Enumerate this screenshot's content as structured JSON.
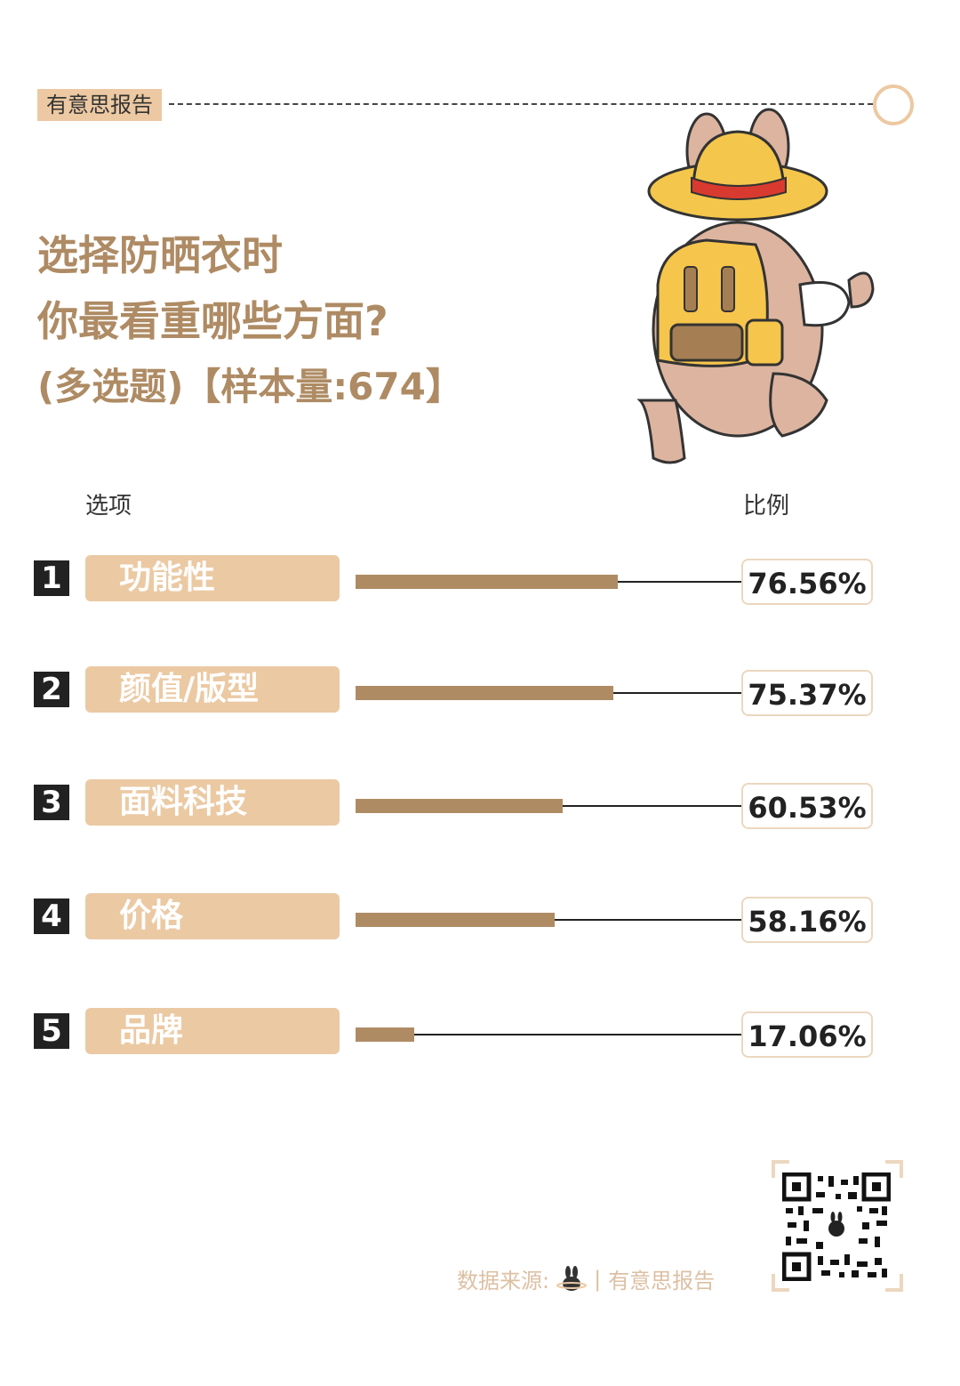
{
  "header": {
    "brand_tag": "有意思报告"
  },
  "title": {
    "line1": "选择防晒衣时",
    "line2": "你最看重哪些方面?",
    "line3": "(多选题)【样本量:674】"
  },
  "table": {
    "col_option": "选项",
    "col_ratio": "比例"
  },
  "chart_data": {
    "type": "bar",
    "categories": [
      "功能性",
      "颜值/版型",
      "面料科技",
      "价格",
      "品牌"
    ],
    "ranks": [
      "1",
      "2",
      "3",
      "4",
      "5"
    ],
    "values": [
      76.56,
      75.37,
      60.53,
      58.16,
      17.06
    ],
    "value_labels": [
      "76.56%",
      "75.37%",
      "60.53%",
      "58.16%",
      "17.06%"
    ],
    "unit": "%",
    "xlim": [
      0,
      100
    ],
    "bar_color": "#af8b64",
    "pill_color": "#ebc9a3"
  },
  "footer": {
    "source_label": "数据来源:",
    "source_name": "有意思报告"
  },
  "icons": {
    "mascot": "rabbit-with-straw-hat-and-backpack",
    "qr": "qr-code",
    "bunny": "bunny-logo-icon"
  },
  "colors": {
    "accent": "#ae8b64",
    "tag_bg": "#ecc9a2",
    "source_text": "#dcc0a3"
  }
}
